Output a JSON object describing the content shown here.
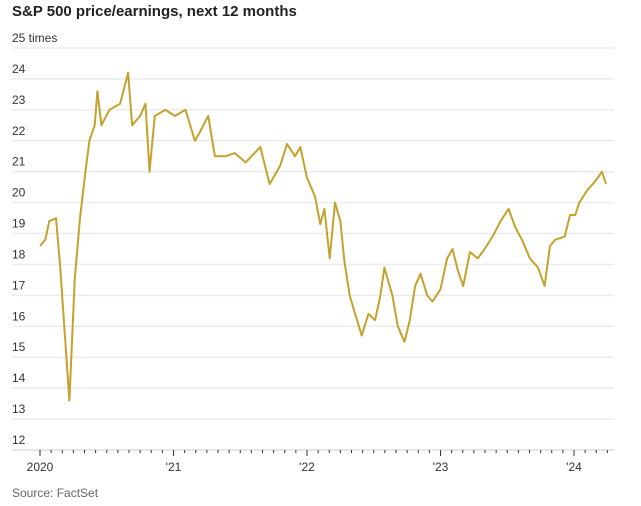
{
  "chart_data": {
    "type": "line",
    "title": "S&P 500 price/earnings, next 12 months",
    "ylabel_unit": "times",
    "ylim": [
      12,
      25
    ],
    "yticks": [
      12,
      13,
      14,
      15,
      16,
      17,
      18,
      19,
      20,
      21,
      22,
      23,
      24,
      25
    ],
    "ytick_labels": [
      "12",
      "13",
      "14",
      "15",
      "16",
      "17",
      "18",
      "19",
      "20",
      "21",
      "22",
      "23",
      "24",
      "25 times"
    ],
    "xlim": [
      2020.0,
      2024.28
    ],
    "xticks": [
      2020,
      2021,
      2022,
      2023,
      2024
    ],
    "xtick_labels": [
      "2020",
      "'21",
      "'22",
      "'23",
      "'24"
    ],
    "grid": true,
    "source": "Source: FactSet",
    "series": [
      {
        "name": "S&P 500 forward P/E",
        "color": "#c4a22d",
        "x": [
          2020.0,
          2020.04,
          2020.07,
          2020.12,
          2020.15,
          2020.22,
          2020.24,
          2020.26,
          2020.3,
          2020.34,
          2020.37,
          2020.41,
          2020.43,
          2020.46,
          2020.52,
          2020.6,
          2020.66,
          2020.69,
          2020.75,
          2020.79,
          2020.82,
          2020.86,
          2020.94,
          2021.01,
          2021.09,
          2021.16,
          2021.2,
          2021.26,
          2021.31,
          2021.39,
          2021.46,
          2021.54,
          2021.65,
          2021.72,
          2021.8,
          2021.85,
          2021.91,
          2021.95,
          2022.0,
          2022.06,
          2022.1,
          2022.13,
          2022.17,
          2022.21,
          2022.25,
          2022.28,
          2022.32,
          2022.36,
          2022.41,
          2022.46,
          2022.51,
          2022.55,
          2022.58,
          2022.64,
          2022.68,
          2022.73,
          2022.77,
          2022.81,
          2022.85,
          2022.9,
          2022.94,
          2023.0,
          2023.05,
          2023.09,
          2023.13,
          2023.17,
          2023.22,
          2023.28,
          2023.33,
          2023.39,
          2023.45,
          2023.51,
          2023.56,
          2023.61,
          2023.67,
          2023.73,
          2023.78,
          2023.82,
          2023.86,
          2023.93,
          2023.97,
          2024.01,
          2024.04,
          2024.1,
          2024.16,
          2024.21,
          2024.24
        ],
        "y": [
          18.6,
          18.8,
          19.4,
          19.5,
          18.0,
          13.6,
          15.5,
          17.5,
          19.5,
          21.0,
          22.0,
          22.5,
          23.6,
          22.5,
          23.0,
          23.2,
          24.2,
          22.5,
          22.8,
          23.2,
          21.0,
          22.8,
          23.0,
          22.8,
          23.0,
          22.0,
          22.3,
          22.8,
          21.5,
          21.5,
          21.6,
          21.3,
          21.8,
          20.6,
          21.2,
          21.9,
          21.5,
          21.8,
          20.8,
          20.2,
          19.3,
          19.8,
          18.2,
          20.0,
          19.4,
          18.1,
          17.0,
          16.4,
          15.7,
          16.4,
          16.2,
          17.0,
          17.9,
          17.0,
          16.0,
          15.5,
          16.2,
          17.3,
          17.7,
          17.0,
          16.8,
          17.2,
          18.2,
          18.5,
          17.8,
          17.3,
          18.4,
          18.2,
          18.5,
          18.9,
          19.4,
          19.8,
          19.2,
          18.8,
          18.2,
          17.9,
          17.3,
          18.6,
          18.8,
          18.9,
          19.6,
          19.6,
          20.0,
          20.4,
          20.7,
          21.0,
          20.6
        ]
      }
    ]
  }
}
